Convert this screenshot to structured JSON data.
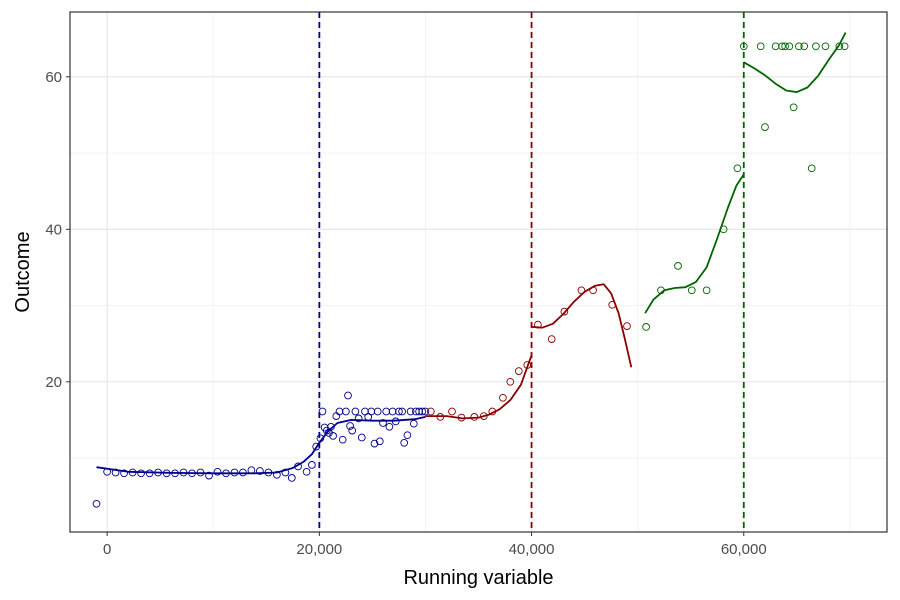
{
  "chart_data": {
    "type": "scatter",
    "title": "",
    "xlabel": "Running variable",
    "ylabel": "Outcome",
    "xlim": [
      -3500,
      73500
    ],
    "ylim": [
      0.3,
      68.5
    ],
    "x_ticks": [
      0,
      20000,
      40000,
      60000
    ],
    "x_tick_labels": [
      "0",
      "20,000",
      "40,000",
      "60,000"
    ],
    "y_ticks": [
      20,
      40,
      60
    ],
    "y_tick_labels": [
      "20",
      "40",
      "60"
    ],
    "grid": true,
    "legend": "none",
    "cutoffs": [
      {
        "x": 20000,
        "color": "#00008B"
      },
      {
        "x": 40000,
        "color": "#8B0000"
      },
      {
        "x": 60000,
        "color": "#006400"
      }
    ],
    "series": [
      {
        "color": "#00008B",
        "points": [
          [
            -1000,
            4.0
          ],
          [
            0,
            8.2
          ],
          [
            800,
            8.1
          ],
          [
            1600,
            8.0
          ],
          [
            2400,
            8.1
          ],
          [
            3200,
            8.0
          ],
          [
            4000,
            8.0
          ],
          [
            4800,
            8.1
          ],
          [
            5600,
            8.0
          ],
          [
            6400,
            8.0
          ],
          [
            7200,
            8.1
          ],
          [
            8000,
            8.0
          ],
          [
            8800,
            8.1
          ],
          [
            9600,
            7.7
          ],
          [
            10400,
            8.2
          ],
          [
            11200,
            8.0
          ],
          [
            12000,
            8.1
          ],
          [
            12800,
            8.1
          ],
          [
            13600,
            8.4
          ],
          [
            14400,
            8.3
          ],
          [
            15200,
            8.1
          ],
          [
            16000,
            7.8
          ],
          [
            16800,
            8.1
          ],
          [
            17400,
            7.4
          ],
          [
            18000,
            8.9
          ],
          [
            18800,
            8.2
          ],
          [
            19300,
            9.1
          ],
          [
            19700,
            11.5
          ],
          [
            20100,
            12.6
          ],
          [
            20300,
            16.1
          ],
          [
            20500,
            14.0
          ],
          [
            20700,
            13.6
          ],
          [
            20900,
            13.3
          ],
          [
            21100,
            14.1
          ],
          [
            21300,
            12.9
          ],
          [
            21600,
            15.5
          ],
          [
            21900,
            16.1
          ],
          [
            22200,
            12.4
          ],
          [
            22500,
            16.1
          ],
          [
            22700,
            18.2
          ],
          [
            22900,
            14.2
          ],
          [
            23100,
            13.6
          ],
          [
            23400,
            16.1
          ],
          [
            23700,
            15.2
          ],
          [
            24000,
            12.7
          ],
          [
            24300,
            16.1
          ],
          [
            24600,
            15.4
          ],
          [
            24900,
            16.1
          ],
          [
            25200,
            11.9
          ],
          [
            25500,
            16.1
          ],
          [
            25700,
            12.2
          ],
          [
            26000,
            14.6
          ],
          [
            26300,
            16.1
          ],
          [
            26600,
            14.1
          ],
          [
            26900,
            16.1
          ],
          [
            27200,
            14.8
          ],
          [
            27500,
            16.1
          ],
          [
            27800,
            16.1
          ],
          [
            28000,
            12.0
          ],
          [
            28300,
            13.0
          ],
          [
            28600,
            16.1
          ],
          [
            28900,
            14.5
          ],
          [
            29100,
            16.1
          ],
          [
            29400,
            16.1
          ],
          [
            29700,
            16.1
          ],
          [
            30000,
            16.1
          ]
        ],
        "fit": [
          [
            -1000,
            8.8
          ],
          [
            2000,
            8.2
          ],
          [
            6000,
            8.05
          ],
          [
            10000,
            8.0
          ],
          [
            14000,
            8.0
          ],
          [
            16000,
            8.1
          ],
          [
            17500,
            8.7
          ],
          [
            18500,
            9.5
          ],
          [
            19300,
            10.5
          ],
          [
            20000,
            12.0
          ],
          [
            20800,
            13.5
          ],
          [
            21700,
            14.6
          ],
          [
            23000,
            15.0
          ],
          [
            25000,
            14.9
          ],
          [
            27000,
            14.9
          ],
          [
            29000,
            15.1
          ],
          [
            30000,
            15.4
          ]
        ]
      },
      {
        "color": "#8B0000",
        "points": [
          [
            30500,
            16.1
          ],
          [
            31400,
            15.4
          ],
          [
            32500,
            16.1
          ],
          [
            33400,
            15.3
          ],
          [
            34600,
            15.4
          ],
          [
            35500,
            15.5
          ],
          [
            36300,
            16.1
          ],
          [
            37300,
            17.9
          ],
          [
            38000,
            20.0
          ],
          [
            38800,
            21.4
          ],
          [
            39600,
            22.2
          ],
          [
            40600,
            27.5
          ],
          [
            41900,
            25.6
          ],
          [
            43100,
            29.2
          ],
          [
            44700,
            32.0
          ],
          [
            45800,
            32.0
          ],
          [
            47600,
            30.1
          ],
          [
            49000,
            27.3
          ]
        ],
        "fit": [
          [
            30000,
            15.5
          ],
          [
            32000,
            15.5
          ],
          [
            33500,
            15.2
          ],
          [
            35000,
            15.3
          ],
          [
            36000,
            15.7
          ],
          [
            37000,
            16.4
          ],
          [
            38000,
            17.6
          ],
          [
            39000,
            19.6
          ],
          [
            40000,
            23.5
          ],
          [
            40000,
            27.2
          ],
          [
            41000,
            27.1
          ],
          [
            42000,
            27.6
          ],
          [
            43000,
            28.9
          ],
          [
            44000,
            30.5
          ],
          [
            45000,
            31.8
          ],
          [
            46000,
            32.6
          ],
          [
            46800,
            32.8
          ],
          [
            47500,
            31.6
          ],
          [
            48200,
            29.0
          ],
          [
            48800,
            25.6
          ],
          [
            49400,
            21.9
          ]
        ]
      },
      {
        "color": "#006400",
        "points": [
          [
            50800,
            27.2
          ],
          [
            52200,
            32.0
          ],
          [
            53800,
            35.2
          ],
          [
            55100,
            32.0
          ],
          [
            56500,
            32.0
          ],
          [
            58100,
            40.0
          ],
          [
            59400,
            48.0
          ],
          [
            60000,
            64.0
          ],
          [
            61600,
            64.0
          ],
          [
            62000,
            53.4
          ],
          [
            63000,
            64.0
          ],
          [
            63600,
            64.0
          ],
          [
            63900,
            64.0
          ],
          [
            64300,
            64.0
          ],
          [
            64700,
            56.0
          ],
          [
            65200,
            64.0
          ],
          [
            65700,
            64.0
          ],
          [
            66400,
            48.0
          ],
          [
            66800,
            64.0
          ],
          [
            67700,
            64.0
          ],
          [
            69000,
            64.0
          ],
          [
            69500,
            64.0
          ]
        ],
        "fit": [
          [
            50700,
            29.0
          ],
          [
            51500,
            30.8
          ],
          [
            52500,
            32.0
          ],
          [
            53500,
            32.3
          ],
          [
            54500,
            32.4
          ],
          [
            55500,
            33.1
          ],
          [
            56500,
            35.0
          ],
          [
            57500,
            38.8
          ],
          [
            58500,
            42.8
          ],
          [
            59300,
            45.7
          ],
          [
            60000,
            47.2
          ],
          [
            60000,
            61.9
          ],
          [
            61000,
            61.1
          ],
          [
            62000,
            60.2
          ],
          [
            63000,
            59.1
          ],
          [
            64000,
            58.2
          ],
          [
            65000,
            58.0
          ],
          [
            66000,
            58.6
          ],
          [
            67000,
            60.1
          ],
          [
            68000,
            62.2
          ],
          [
            69000,
            64.2
          ],
          [
            69600,
            65.8
          ]
        ]
      }
    ]
  }
}
